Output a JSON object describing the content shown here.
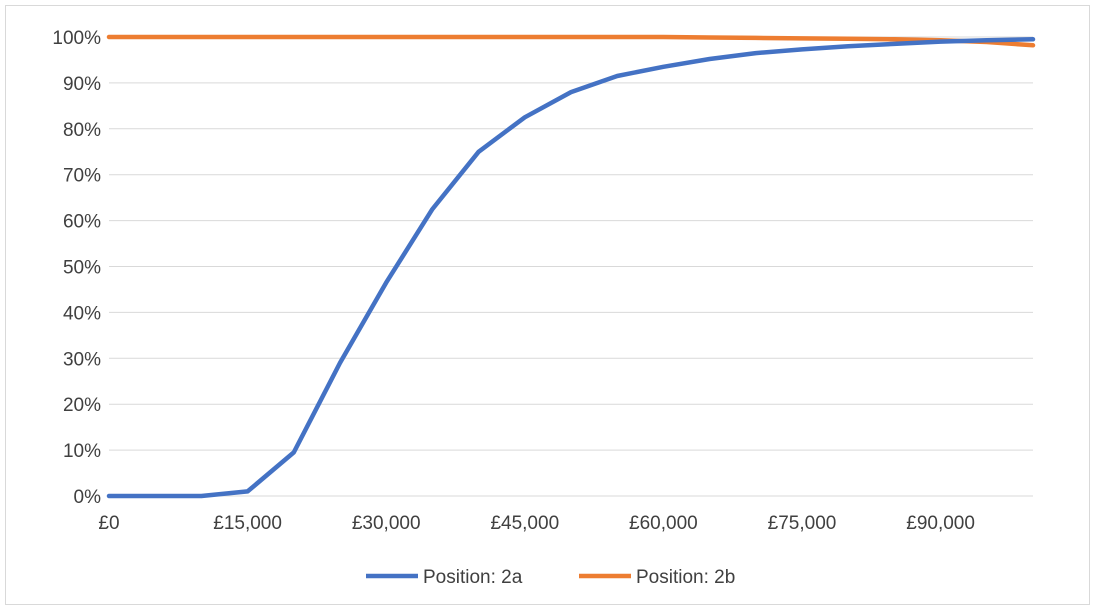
{
  "chart_data": {
    "type": "line",
    "title": "",
    "xlabel": "",
    "ylabel": "",
    "xlim": [
      0,
      100000
    ],
    "ylim": [
      0,
      100
    ],
    "x_ticks": [
      0,
      15000,
      30000,
      45000,
      60000,
      75000,
      90000
    ],
    "x_tick_labels": [
      "£0",
      "£15,000",
      "£30,000",
      "£45,000",
      "£60,000",
      "£75,000",
      "£90,000"
    ],
    "y_ticks": [
      0,
      10,
      20,
      30,
      40,
      50,
      60,
      70,
      80,
      90,
      100
    ],
    "y_tick_labels": [
      "0%",
      "10%",
      "20%",
      "30%",
      "40%",
      "50%",
      "60%",
      "70%",
      "80%",
      "90%",
      "100%"
    ],
    "grid": "horizontal",
    "legend_position": "bottom",
    "x": [
      0,
      5000,
      10000,
      15000,
      20000,
      25000,
      30000,
      35000,
      40000,
      45000,
      50000,
      55000,
      60000,
      65000,
      70000,
      75000,
      80000,
      85000,
      90000,
      95000,
      100000
    ],
    "series": [
      {
        "name": "Position: 2a",
        "color": "#4472c4",
        "values": [
          0,
          0,
          0,
          1,
          9.5,
          29,
          46.5,
          62.5,
          75,
          82.5,
          88,
          91.5,
          93.5,
          95.2,
          96.5,
          97.3,
          98,
          98.5,
          99,
          99.3,
          99.5
        ]
      },
      {
        "name": "Position: 2b",
        "color": "#ed7d31",
        "values": [
          100,
          100,
          100,
          100,
          100,
          100,
          100,
          100,
          100,
          100,
          100,
          100,
          100,
          99.9,
          99.8,
          99.7,
          99.6,
          99.5,
          99.3,
          98.9,
          98.2
        ]
      }
    ]
  }
}
